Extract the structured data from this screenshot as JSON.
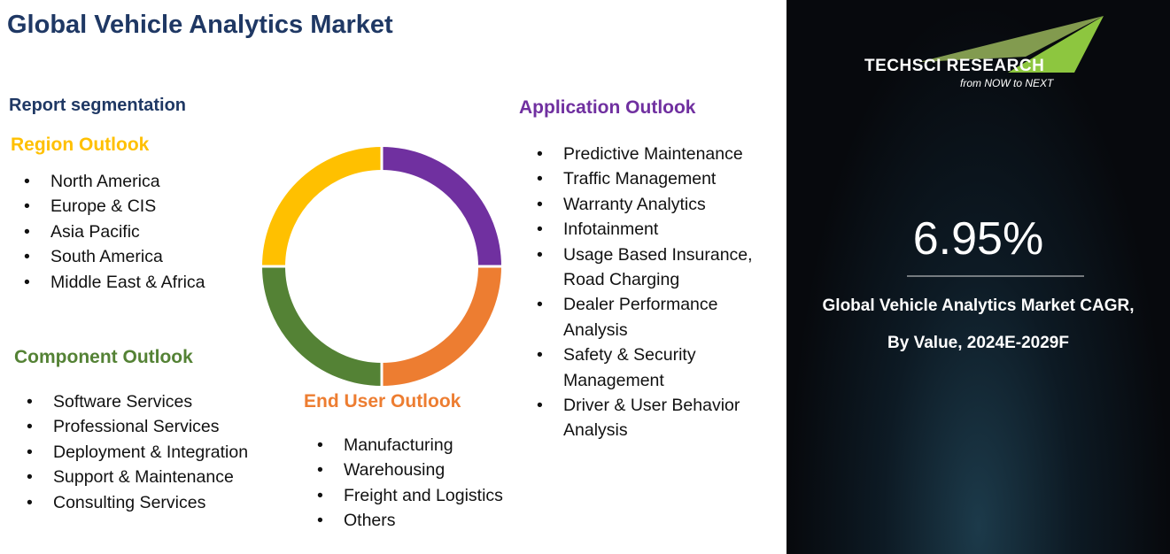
{
  "header": {
    "title": "Global Vehicle Analytics Market",
    "subtitle": "Report segmentation"
  },
  "sections": [
    {
      "title": "Region Outlook",
      "items": [
        "North America",
        "Europe & CIS",
        "Asia Pacific",
        "South America",
        "Middle East & Africa"
      ]
    },
    {
      "title": "Component Outlook",
      "items": [
        "Software Services",
        "Professional Services",
        "Deployment & Integration",
        "Support & Maintenance",
        "Consulting Services"
      ]
    },
    {
      "title": "End User Outlook",
      "items": [
        "Manufacturing",
        "Warehousing",
        "Freight and Logistics",
        "Others"
      ]
    },
    {
      "title": "Application Outlook",
      "items": [
        "Predictive Maintenance",
        "Traffic Management",
        "Warranty Analytics",
        "Infotainment",
        "Usage Based Insurance, Road Charging",
        "Dealer Performance Analysis",
        "Safety & Security Management",
        "Driver & User Behavior Analysis"
      ]
    }
  ],
  "panel": {
    "logo": "TECHSCI RESEARCH",
    "tagline": "from NOW to NEXT",
    "cagr": "6.95%",
    "caption": [
      "Global Vehicle Analytics Market CAGR,",
      "By Value, 2024E-2029F"
    ]
  }
}
